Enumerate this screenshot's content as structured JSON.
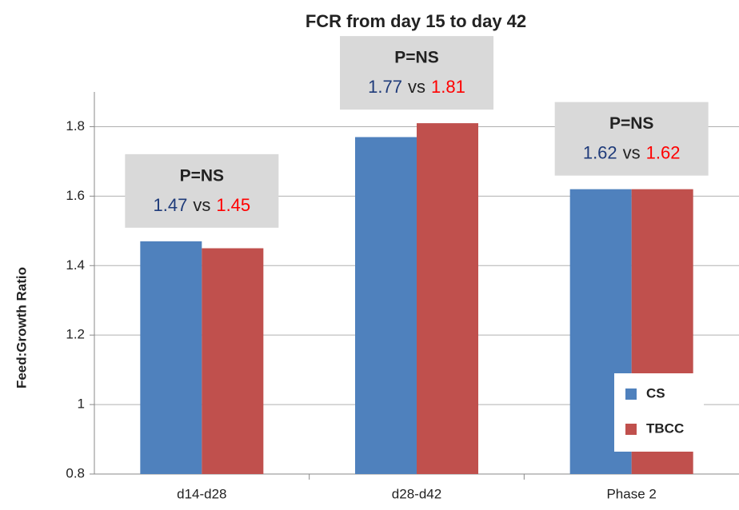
{
  "chart_data": {
    "type": "bar",
    "title": "FCR from day 15 to day 42",
    "y_label": "Feed:Growth Ratio",
    "categories": [
      "d14-d28",
      "d28-d42",
      "Phase 2"
    ],
    "series": [
      {
        "name": "CS",
        "color": "#4f81bd",
        "values": [
          1.47,
          1.77,
          1.62
        ],
        "value_labels": [
          "1.47",
          "1.77",
          "1.62"
        ],
        "label_color": "#1f3b7a"
      },
      {
        "name": "TBCC",
        "color": "#c0504d",
        "values": [
          1.45,
          1.81,
          1.62
        ],
        "value_labels": [
          "1.45",
          "1.81",
          "1.62"
        ],
        "label_color": "#ff0000"
      }
    ],
    "annotations": [
      {
        "text": "P=NS",
        "joiner": "vs"
      },
      {
        "text": "P=NS",
        "joiner": "vs"
      },
      {
        "text": "P=NS",
        "joiner": "vs"
      }
    ],
    "ylim": [
      0.8,
      1.9
    ],
    "yticks": [
      0.8,
      1,
      1.2,
      1.4,
      1.6,
      1.8
    ],
    "grid": true,
    "legend": "lower right"
  }
}
